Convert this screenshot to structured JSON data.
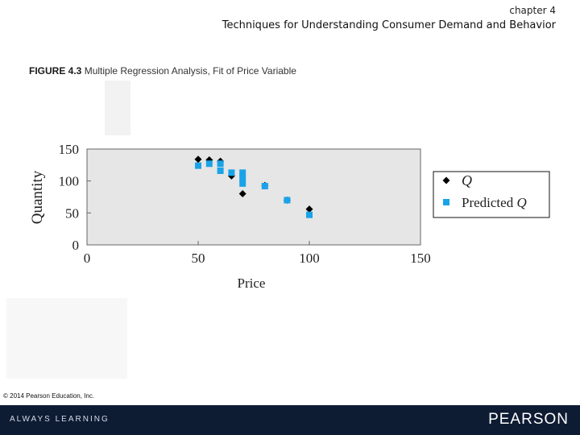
{
  "header": {
    "chapter": "chapter 4",
    "subtitle": "Techniques for Understanding Consumer Demand and Behavior"
  },
  "figure": {
    "number": "FIGURE 4.3",
    "caption": "Multiple Regression Analysis, Fit of Price Variable"
  },
  "chart_data": {
    "type": "scatter",
    "xlabel": "Price",
    "ylabel": "Quantity",
    "xlim": [
      0,
      150
    ],
    "ylim": [
      0,
      150
    ],
    "xticks": [
      "0",
      "50",
      "100",
      "150"
    ],
    "yticks": [
      "0",
      "50",
      "100",
      "150"
    ],
    "grid": false,
    "legend_position": "right",
    "series": [
      {
        "name": "Q",
        "marker": "diamond",
        "color": "#000000",
        "points": [
          [
            50,
            134
          ],
          [
            55,
            133
          ],
          [
            60,
            131
          ],
          [
            65,
            108
          ],
          [
            70,
            80
          ],
          [
            80,
            93
          ],
          [
            90,
            70
          ],
          [
            100,
            56
          ]
        ]
      },
      {
        "name": "Predicted Q",
        "marker": "square",
        "color": "#1aa3e8",
        "points": [
          [
            50,
            124
          ],
          [
            55,
            127
          ],
          [
            60,
            127
          ],
          [
            60,
            116
          ],
          [
            65,
            113
          ],
          [
            70,
            113
          ],
          [
            70,
            104
          ],
          [
            70,
            96
          ],
          [
            80,
            92
          ],
          [
            90,
            70
          ],
          [
            100,
            47
          ]
        ]
      }
    ]
  },
  "legend": {
    "q_label": "Q",
    "predicted_prefix": "Predicted ",
    "predicted_q": "Q"
  },
  "footer": {
    "copyright": "© 2014 Pearson Education, Inc.",
    "tagline": "ALWAYS LEARNING",
    "brand": "PEARSON"
  }
}
